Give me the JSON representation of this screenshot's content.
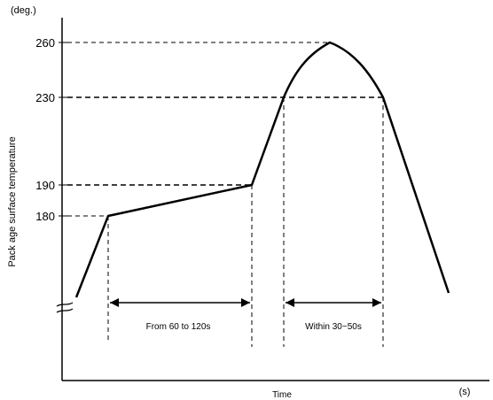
{
  "diagram": {
    "y_unit": "(deg.)",
    "x_unit": "(s)",
    "x_axis_label": "Time",
    "y_axis_label": "Pack age surface temperature",
    "y_ticks": [
      "260",
      "230",
      "190",
      "180"
    ],
    "preheat_span_label": "From 60 to 120s",
    "peak_span_label": "Within 30~50s"
  },
  "chart_data": {
    "type": "line",
    "title": "",
    "xlabel": "Time",
    "ylabel": "Pack age surface temperature",
    "y_unit": "(deg.)",
    "x_unit": "(s)",
    "y_ticks": [
      260,
      230,
      190,
      180
    ],
    "series": [
      {
        "name": "",
        "points": [
          {
            "stage": "start",
            "temp": null
          },
          {
            "stage": "preheat start",
            "temp": 180
          },
          {
            "stage": "preheat end",
            "temp": 190
          },
          {
            "stage": "reflow rise",
            "temp": 230
          },
          {
            "stage": "peak",
            "temp": 260
          },
          {
            "stage": "reflow fall",
            "temp": 230
          },
          {
            "stage": "cool down",
            "temp": null
          }
        ]
      }
    ],
    "annotations": [
      {
        "text": "From 60 to 120s",
        "between": [
          "preheat start",
          "preheat end"
        ]
      },
      {
        "text": "Within 30~50s",
        "between": [
          "reflow rise",
          "reflow fall"
        ]
      }
    ],
    "grid": false
  }
}
